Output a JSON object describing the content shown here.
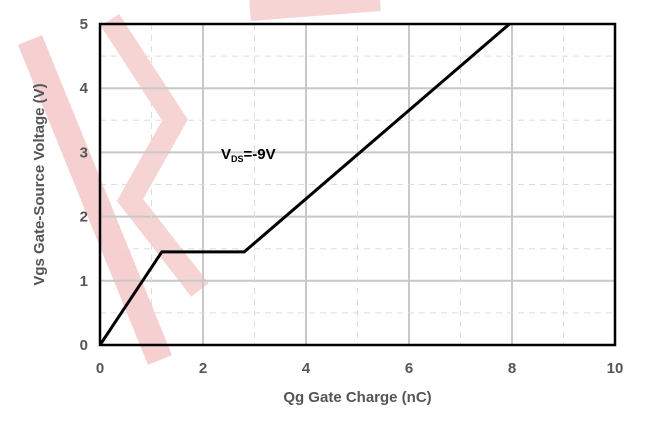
{
  "chart_data": {
    "type": "line",
    "title": "",
    "xlabel": "Qg Gate Charge (nC)",
    "ylabel": "Vgs Gate-Source Voltage (V)",
    "xlim": [
      0,
      10
    ],
    "ylim": [
      0,
      5
    ],
    "xticks": [
      "0",
      "2",
      "4",
      "6",
      "8",
      "10"
    ],
    "yticks": [
      "0",
      "1",
      "2",
      "3",
      "4",
      "5"
    ],
    "grid": true,
    "series": [
      {
        "x": [
          0,
          1.2,
          2.8,
          7.95
        ],
        "y": [
          0,
          1.45,
          1.45,
          5.0
        ]
      }
    ],
    "annotations": [
      {
        "main": "V",
        "sub": "DS",
        "rest": "=-9V",
        "x": 2.35,
        "y": 2.9
      }
    ],
    "line_color": "#000000",
    "grid_color": "#c8c8c8",
    "watermark_color": "#f0b0b0"
  }
}
